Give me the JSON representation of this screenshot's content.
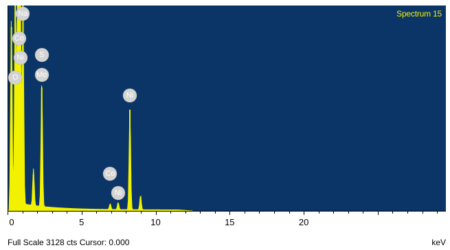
{
  "window": {
    "spectrum_title": "Spectrum 15",
    "footer": {
      "full_scale_label": "Full Scale 3128 cts Cursor: 0.000",
      "unit": "keV"
    }
  },
  "colors": {
    "plot_background": "#0b3566",
    "trace": "#f2f200",
    "label_bubble": "#d3d3d3"
  },
  "chart_data": {
    "type": "area",
    "title": "Spectrum 15",
    "xlabel": "keV",
    "ylabel": "",
    "full_scale_counts": 3128,
    "xlim": [
      0,
      29.6
    ],
    "ylim": [
      0,
      3128
    ],
    "x_ticks": [
      0,
      5,
      10,
      15,
      20
    ],
    "peaks": [
      {
        "x": 0.26,
        "y": 2800
      },
      {
        "x": 0.52,
        "y": 3128
      },
      {
        "x": 0.68,
        "y": 3128
      },
      {
        "x": 0.78,
        "y": 3128
      },
      {
        "x": 0.86,
        "y": 3128
      },
      {
        "x": 1.04,
        "y": 3128
      },
      {
        "x": 1.75,
        "y": 560
      },
      {
        "x": 2.31,
        "y": 1880
      },
      {
        "x": 6.93,
        "y": 90
      },
      {
        "x": 7.47,
        "y": 110
      },
      {
        "x": 8.26,
        "y": 1540
      },
      {
        "x": 8.98,
        "y": 220
      }
    ],
    "element_labels": [
      {
        "text": "Na",
        "x": 1.04,
        "y": 3000
      },
      {
        "text": "Co",
        "x": 0.78,
        "y": 2630
      },
      {
        "text": "Ni",
        "x": 0.86,
        "y": 2330
      },
      {
        "text": "S",
        "x": 2.31,
        "y": 2380
      },
      {
        "text": "O",
        "x": 0.52,
        "y": 2030
      },
      {
        "text": "Mo",
        "x": 2.31,
        "y": 2070
      },
      {
        "text": "Ni",
        "x": 8.26,
        "y": 1760
      },
      {
        "text": "Co",
        "x": 6.93,
        "y": 570
      },
      {
        "text": "Ni",
        "x": 7.47,
        "y": 270
      }
    ]
  }
}
